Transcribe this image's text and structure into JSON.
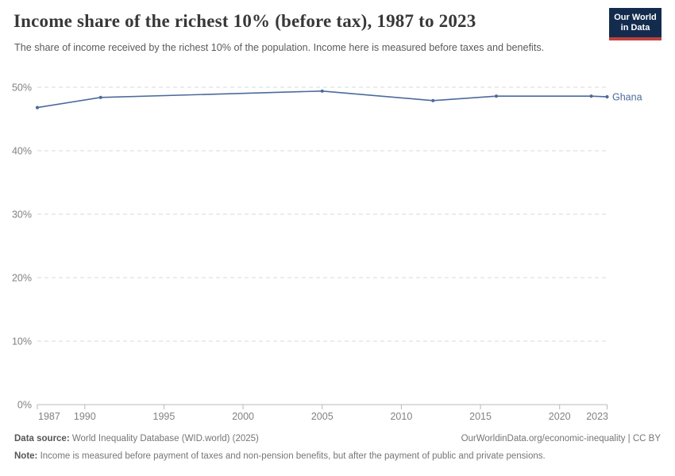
{
  "header": {
    "logo_line1": "Our World",
    "logo_line2": "in Data",
    "logo_bg": "#132c4e",
    "logo_accent": "#c0403d"
  },
  "chart_data": {
    "type": "line",
    "title": "Income share of the richest 10% (before tax), 1987 to 2023",
    "subtitle": "The share of income received by the richest 10% of the population. Income here is measured before taxes and benefits.",
    "series": [
      {
        "name": "Ghana",
        "x": [
          1987,
          1991,
          2005,
          2012,
          2016,
          2022,
          2023
        ],
        "values": [
          46.8,
          48.4,
          49.4,
          47.9,
          48.6,
          48.6,
          48.5
        ]
      }
    ],
    "xlim": [
      1987,
      2023
    ],
    "ylim": [
      0,
      50
    ],
    "x_ticks": [
      1987,
      1990,
      1995,
      2000,
      2005,
      2010,
      2015,
      2020,
      2023
    ],
    "y_ticks": [
      0,
      10,
      20,
      30,
      40,
      50
    ],
    "y_tick_suffix": "%",
    "grid": "horizontal-dashed",
    "legend_position": "end-of-line",
    "line_color": "#4c6a9c",
    "grid_color": "#dadada",
    "axis_color": "#b9b9b9"
  },
  "footer": {
    "data_source_label": "Data source:",
    "data_source_value": "World Inequality Database (WID.world) (2025)",
    "attribution": "OurWorldinData.org/economic-inequality | CC BY",
    "note_label": "Note:",
    "note_text": "Income is measured before payment of taxes and non-pension benefits, but after the payment of public and private pensions."
  }
}
